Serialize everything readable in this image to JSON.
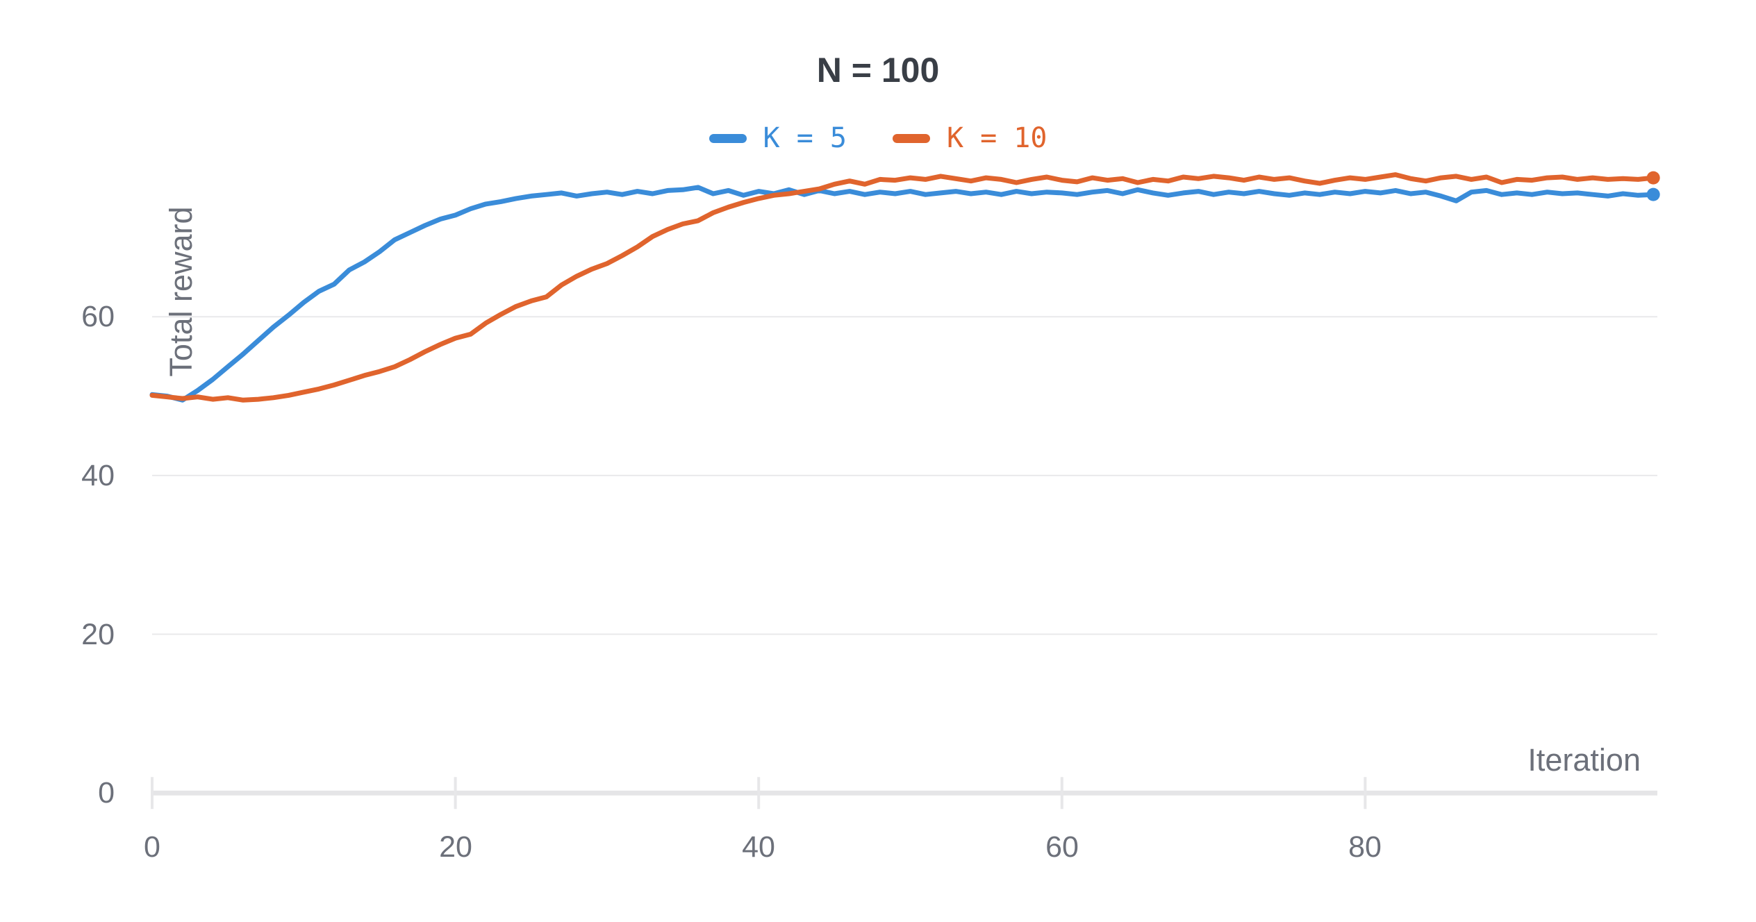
{
  "title": "N = 100",
  "legend": {
    "items": [
      {
        "label": "K = 5",
        "color": "#3a8cd9"
      },
      {
        "label": "K = 10",
        "color": "#e0642d"
      }
    ]
  },
  "axes": {
    "x_label": "Iteration",
    "y_label": "Total reward",
    "x_ticks": [
      "0",
      "20",
      "40",
      "60",
      "80"
    ],
    "y_ticks": [
      "0",
      "20",
      "40",
      "60"
    ]
  },
  "colors": {
    "title_text": "#393e46",
    "tick_text": "#6c707a",
    "grid_line": "#e9e9eb",
    "axis_line": "#e5e5e7",
    "tick_mark": "#e7e7e9",
    "series_blue": "#3a8cd9",
    "series_orange": "#e0642d"
  },
  "chart_data": {
    "type": "line",
    "title": "N = 100",
    "xlabel": "Iteration",
    "ylabel": "Total reward",
    "x_start": 0,
    "x_step": 1,
    "xlim": [
      0,
      99
    ],
    "ylim": [
      0,
      80
    ],
    "xticks": [
      0,
      20,
      40,
      60,
      80
    ],
    "yticks": [
      0,
      20,
      40,
      60
    ],
    "grid": "horizontal-only",
    "legend_position": "top-center",
    "line_width": 7,
    "end_dot_radius": 9.5,
    "series": [
      {
        "name": "K = 5",
        "color": "#3a8cd9",
        "end_dot": true,
        "values": [
          50.2,
          50.0,
          49.5,
          50.7,
          52.1,
          53.7,
          55.3,
          57.0,
          58.7,
          60.2,
          61.8,
          63.2,
          64.1,
          65.9,
          66.9,
          68.2,
          69.7,
          70.6,
          71.5,
          72.3,
          72.8,
          73.6,
          74.2,
          74.5,
          74.9,
          75.2,
          75.4,
          75.6,
          75.2,
          75.5,
          75.7,
          75.4,
          75.8,
          75.5,
          75.9,
          76.0,
          76.3,
          75.5,
          75.9,
          75.3,
          75.8,
          75.5,
          76.0,
          75.4,
          75.9,
          75.5,
          75.8,
          75.4,
          75.7,
          75.5,
          75.8,
          75.4,
          75.6,
          75.8,
          75.5,
          75.7,
          75.4,
          75.8,
          75.5,
          75.7,
          75.6,
          75.4,
          75.7,
          75.9,
          75.5,
          76.0,
          75.6,
          75.3,
          75.6,
          75.8,
          75.4,
          75.7,
          75.5,
          75.8,
          75.5,
          75.3,
          75.6,
          75.4,
          75.7,
          75.5,
          75.8,
          75.6,
          75.9,
          75.5,
          75.7,
          75.2,
          74.6,
          75.7,
          75.9,
          75.4,
          75.6,
          75.4,
          75.7,
          75.5,
          75.6,
          75.4,
          75.2,
          75.5,
          75.3,
          75.4
        ]
      },
      {
        "name": "K = 10",
        "color": "#e0642d",
        "end_dot": true,
        "values": [
          50.1,
          49.9,
          49.7,
          49.9,
          49.6,
          49.8,
          49.5,
          49.6,
          49.8,
          50.1,
          50.5,
          50.9,
          51.4,
          52.0,
          52.6,
          53.1,
          53.7,
          54.6,
          55.6,
          56.5,
          57.3,
          57.8,
          59.2,
          60.3,
          61.3,
          62.0,
          62.5,
          64.0,
          65.1,
          66.0,
          66.7,
          67.7,
          68.8,
          70.1,
          71.0,
          71.7,
          72.1,
          73.1,
          73.8,
          74.4,
          74.9,
          75.3,
          75.5,
          75.8,
          76.1,
          76.7,
          77.1,
          76.7,
          77.3,
          77.2,
          77.5,
          77.3,
          77.7,
          77.4,
          77.1,
          77.5,
          77.3,
          76.9,
          77.3,
          77.6,
          77.2,
          77.0,
          77.5,
          77.2,
          77.4,
          76.9,
          77.3,
          77.1,
          77.6,
          77.4,
          77.7,
          77.5,
          77.2,
          77.6,
          77.3,
          77.5,
          77.1,
          76.8,
          77.2,
          77.5,
          77.3,
          77.6,
          77.9,
          77.4,
          77.1,
          77.5,
          77.7,
          77.3,
          77.6,
          76.9,
          77.3,
          77.2,
          77.5,
          77.6,
          77.3,
          77.5,
          77.3,
          77.4,
          77.3,
          77.5
        ]
      }
    ]
  }
}
